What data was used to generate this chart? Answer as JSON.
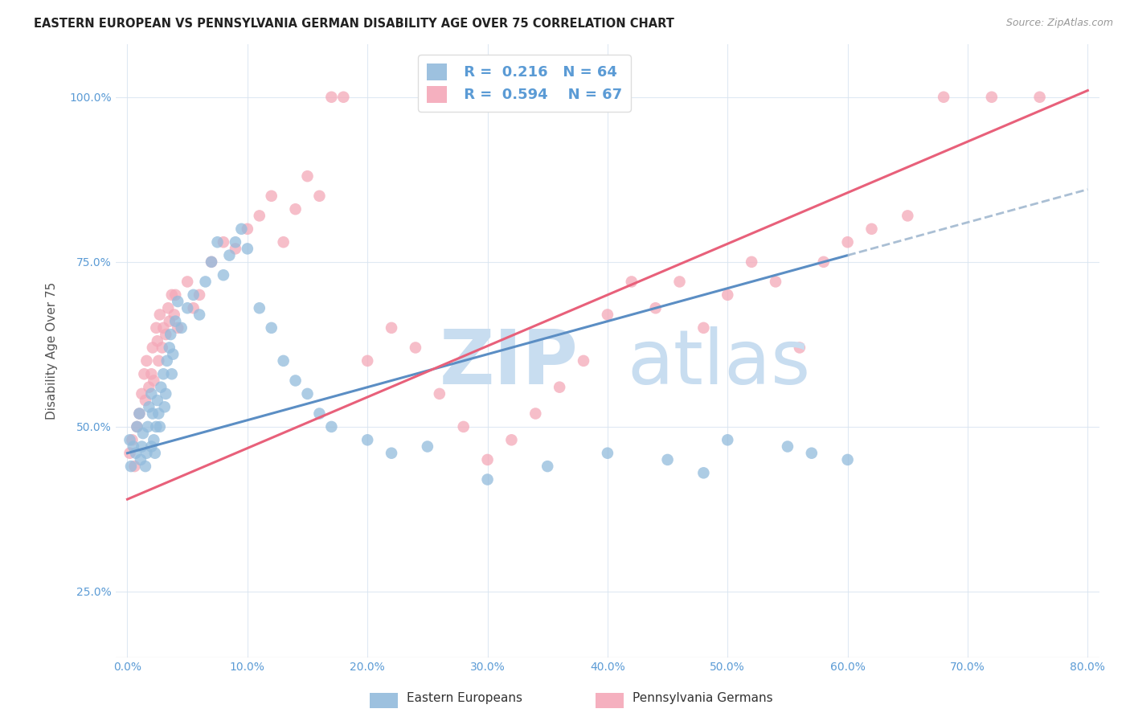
{
  "title": "EASTERN EUROPEAN VS PENNSYLVANIA GERMAN DISABILITY AGE OVER 75 CORRELATION CHART",
  "source": "Source: ZipAtlas.com",
  "ylabel": "Disability Age Over 75",
  "xlabel_ticks": [
    "0.0%",
    "10.0%",
    "20.0%",
    "30.0%",
    "40.0%",
    "50.0%",
    "60.0%",
    "70.0%",
    "80.0%"
  ],
  "xlabel_vals": [
    0,
    10,
    20,
    30,
    40,
    50,
    60,
    70,
    80
  ],
  "ylabel_ticks": [
    "25.0%",
    "50.0%",
    "75.0%",
    "100.0%"
  ],
  "ylabel_vals": [
    25,
    50,
    75,
    100
  ],
  "xlim": [
    -1,
    81
  ],
  "ylim": [
    15,
    108
  ],
  "legend_labels": [
    "Eastern Europeans",
    "Pennsylvania Germans"
  ],
  "R_eastern": 0.216,
  "N_eastern": 64,
  "R_penn": 0.594,
  "N_penn": 67,
  "color_eastern": "#92bbdc",
  "color_penn": "#f4a8b8",
  "color_trendline_eastern": "#5b8ec4",
  "color_trendline_penn": "#e8607a",
  "color_trendline_dashed": "#aabfd4",
  "watermark_zip": "ZIP",
  "watermark_atlas": "atlas",
  "title_fontsize": 10.5,
  "source_fontsize": 9,
  "eastern_x": [
    0.2,
    0.3,
    0.5,
    0.7,
    0.8,
    1.0,
    1.1,
    1.2,
    1.3,
    1.5,
    1.6,
    1.7,
    1.8,
    2.0,
    2.0,
    2.1,
    2.2,
    2.3,
    2.4,
    2.5,
    2.6,
    2.7,
    2.8,
    3.0,
    3.1,
    3.2,
    3.3,
    3.5,
    3.6,
    3.7,
    3.8,
    4.0,
    4.2,
    4.5,
    5.0,
    5.5,
    6.0,
    6.5,
    7.0,
    7.5,
    8.0,
    8.5,
    9.0,
    9.5,
    10.0,
    11.0,
    12.0,
    13.0,
    14.0,
    15.0,
    16.0,
    17.0,
    20.0,
    22.0,
    25.0,
    30.0,
    35.0,
    40.0,
    45.0,
    48.0,
    50.0,
    55.0,
    57.0,
    60.0
  ],
  "eastern_y": [
    48,
    44,
    47,
    46,
    50,
    52,
    45,
    47,
    49,
    44,
    46,
    50,
    53,
    47,
    55,
    52,
    48,
    46,
    50,
    54,
    52,
    50,
    56,
    58,
    53,
    55,
    60,
    62,
    64,
    58,
    61,
    66,
    69,
    65,
    68,
    70,
    67,
    72,
    75,
    78,
    73,
    76,
    78,
    80,
    77,
    68,
    65,
    60,
    57,
    55,
    52,
    50,
    48,
    46,
    47,
    42,
    44,
    46,
    45,
    43,
    48,
    47,
    46,
    45
  ],
  "penn_x": [
    0.2,
    0.4,
    0.6,
    0.8,
    1.0,
    1.2,
    1.4,
    1.5,
    1.6,
    1.8,
    2.0,
    2.1,
    2.2,
    2.4,
    2.5,
    2.6,
    2.7,
    2.9,
    3.0,
    3.2,
    3.4,
    3.5,
    3.7,
    3.9,
    4.0,
    4.2,
    5.0,
    5.5,
    6.0,
    7.0,
    8.0,
    9.0,
    10.0,
    11.0,
    12.0,
    13.0,
    14.0,
    15.0,
    16.0,
    17.0,
    18.0,
    20.0,
    22.0,
    24.0,
    26.0,
    28.0,
    30.0,
    32.0,
    34.0,
    36.0,
    38.0,
    40.0,
    42.0,
    44.0,
    46.0,
    48.0,
    50.0,
    52.0,
    54.0,
    56.0,
    58.0,
    60.0,
    62.0,
    65.0,
    68.0,
    72.0,
    76.0
  ],
  "penn_y": [
    46,
    48,
    44,
    50,
    52,
    55,
    58,
    54,
    60,
    56,
    58,
    62,
    57,
    65,
    63,
    60,
    67,
    62,
    65,
    64,
    68,
    66,
    70,
    67,
    70,
    65,
    72,
    68,
    70,
    75,
    78,
    77,
    80,
    82,
    85,
    78,
    83,
    88,
    85,
    100,
    100,
    60,
    65,
    62,
    55,
    50,
    45,
    48,
    52,
    56,
    60,
    67,
    72,
    68,
    72,
    65,
    70,
    75,
    72,
    62,
    75,
    78,
    80,
    82,
    100,
    100,
    100
  ],
  "trendline_eastern_x0": 0,
  "trendline_eastern_y0": 46,
  "trendline_eastern_x1": 60,
  "trendline_eastern_y1": 76,
  "trendline_penn_x0": 0,
  "trendline_penn_y0": 39,
  "trendline_penn_x1": 80,
  "trendline_penn_y1": 101,
  "dashed_x0": 60,
  "dashed_y0": 76,
  "dashed_x1": 80,
  "dashed_y1": 86
}
